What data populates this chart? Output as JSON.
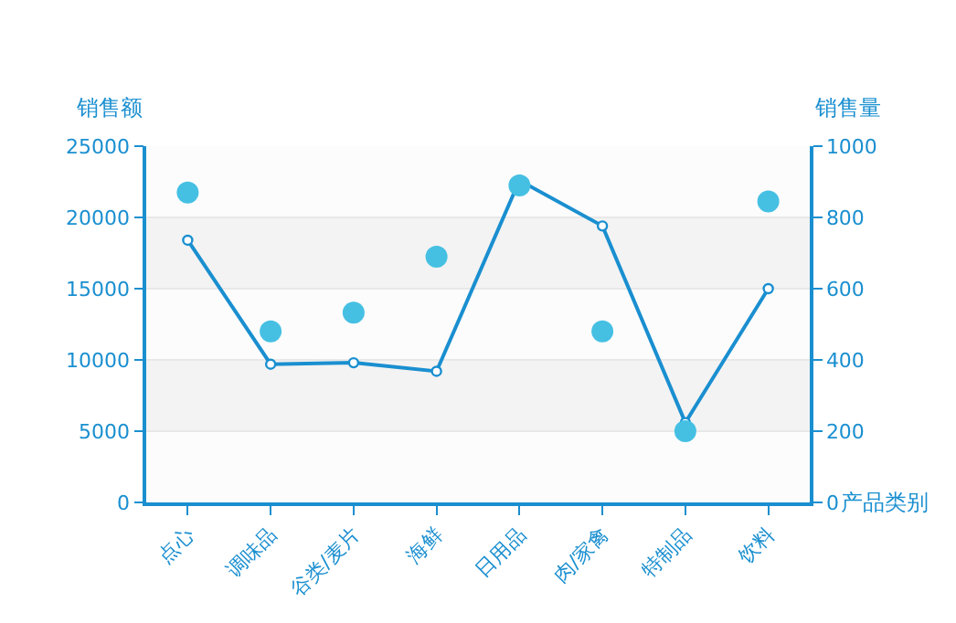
{
  "chart_data": {
    "type": "line",
    "categories": [
      "点心",
      "调味品",
      "谷类/麦片",
      "海鲜",
      "日用品",
      "肉/家禽",
      "特制品",
      "饮料"
    ],
    "xlabel": "产品类别",
    "ylabel": "销售额",
    "y2label": "销售量",
    "series": [
      {
        "color": "#1a8fd0",
        "values": [
          18400,
          9700,
          9800,
          9200,
          22600,
          19400,
          5600,
          15000
        ],
        "marker": "circle"
      },
      {
        "type": "scatter",
        "axis": "y2",
        "color": "#45c0e3",
        "values": [
          870,
          480,
          533,
          690,
          890,
          480,
          200,
          845
        ],
        "marker": "circle"
      }
    ],
    "ylim": [
      0,
      25000
    ],
    "yticks": [
      0,
      5000,
      10000,
      15000,
      20000,
      25000
    ],
    "y2lim": [
      0,
      1000
    ],
    "y2ticks": [
      0,
      200,
      400,
      600,
      800,
      1000
    ],
    "bands": [
      {
        "axis": "y",
        "from": 5000,
        "to": 10000,
        "color": "#f3f3f3"
      },
      {
        "axis": "y",
        "from": 15000,
        "to": 20000,
        "color": "#f3f3f3"
      }
    ],
    "grid": "y"
  }
}
